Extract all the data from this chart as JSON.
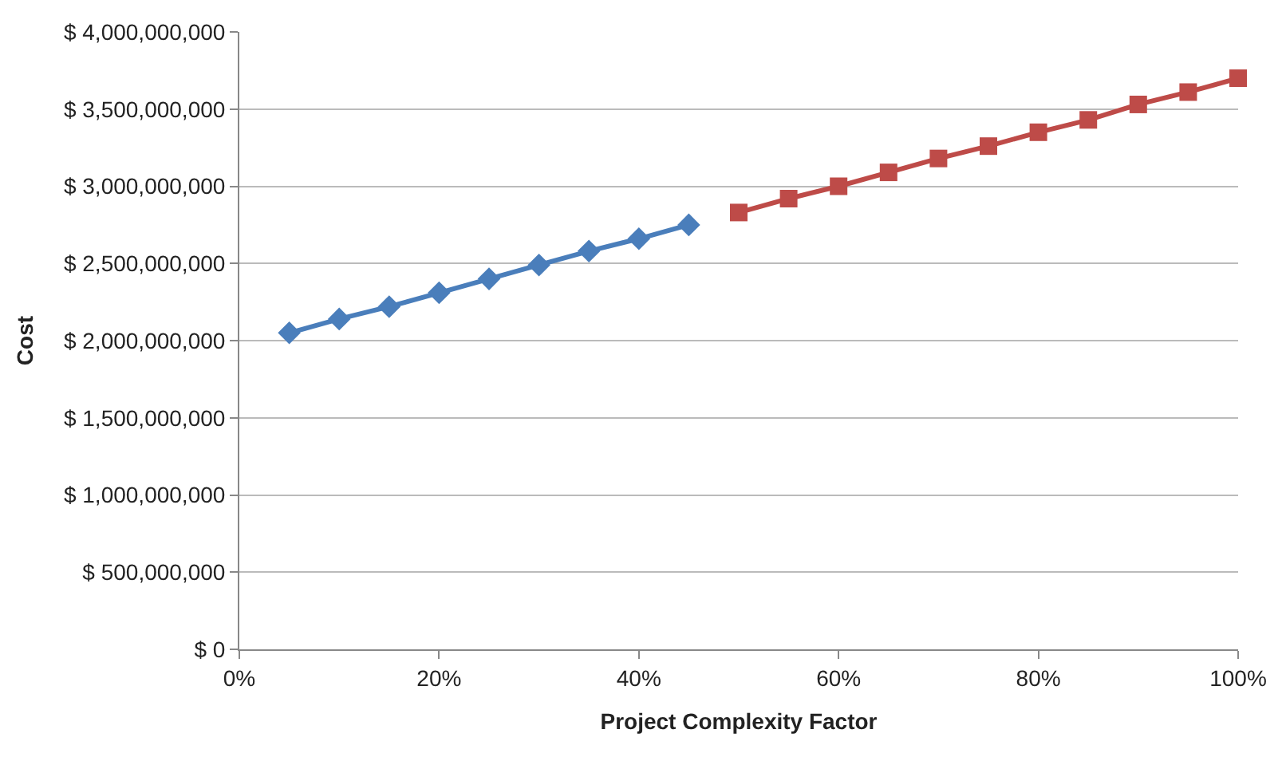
{
  "chart_data": {
    "type": "line",
    "xlabel": "Project Complexity Factor",
    "ylabel": "Cost",
    "xlim": [
      0,
      100
    ],
    "xticks": [
      {
        "value": 0,
        "label": "0%"
      },
      {
        "value": 20,
        "label": "20%"
      },
      {
        "value": 40,
        "label": "40%"
      },
      {
        "value": 60,
        "label": "60%"
      },
      {
        "value": 80,
        "label": "80%"
      },
      {
        "value": 100,
        "label": "100%"
      }
    ],
    "ylim": [
      0,
      4000000000
    ],
    "yticks": [
      {
        "value": 0,
        "label": "$ 0"
      },
      {
        "value": 500000000,
        "label": "$ 500,000,000"
      },
      {
        "value": 1000000000,
        "label": "$ 1,000,000,000"
      },
      {
        "value": 1500000000,
        "label": "$ 1,500,000,000"
      },
      {
        "value": 2000000000,
        "label": "$ 2,000,000,000"
      },
      {
        "value": 2500000000,
        "label": "$ 2,500,000,000"
      },
      {
        "value": 3000000000,
        "label": "$ 3,000,000,000"
      },
      {
        "value": 3500000000,
        "label": "$ 3,500,000,000"
      },
      {
        "value": 4000000000,
        "label": "$ 4,000,000,000"
      }
    ],
    "grid": "y",
    "series": [
      {
        "color": "#4a7ebb",
        "marker": "diamond",
        "x": [
          5,
          10,
          15,
          20,
          25,
          30,
          35,
          40,
          45
        ],
        "values": [
          2050000000,
          2140000000,
          2220000000,
          2310000000,
          2400000000,
          2490000000,
          2580000000,
          2660000000,
          2750000000
        ]
      },
      {
        "color": "#be4b48",
        "marker": "square",
        "x": [
          50,
          55,
          60,
          65,
          70,
          75,
          80,
          85,
          90,
          95,
          100
        ],
        "values": [
          2830000000,
          2920000000,
          3000000000,
          3090000000,
          3180000000,
          3260000000,
          3350000000,
          3430000000,
          3530000000,
          3610000000,
          3700000000
        ]
      }
    ]
  }
}
